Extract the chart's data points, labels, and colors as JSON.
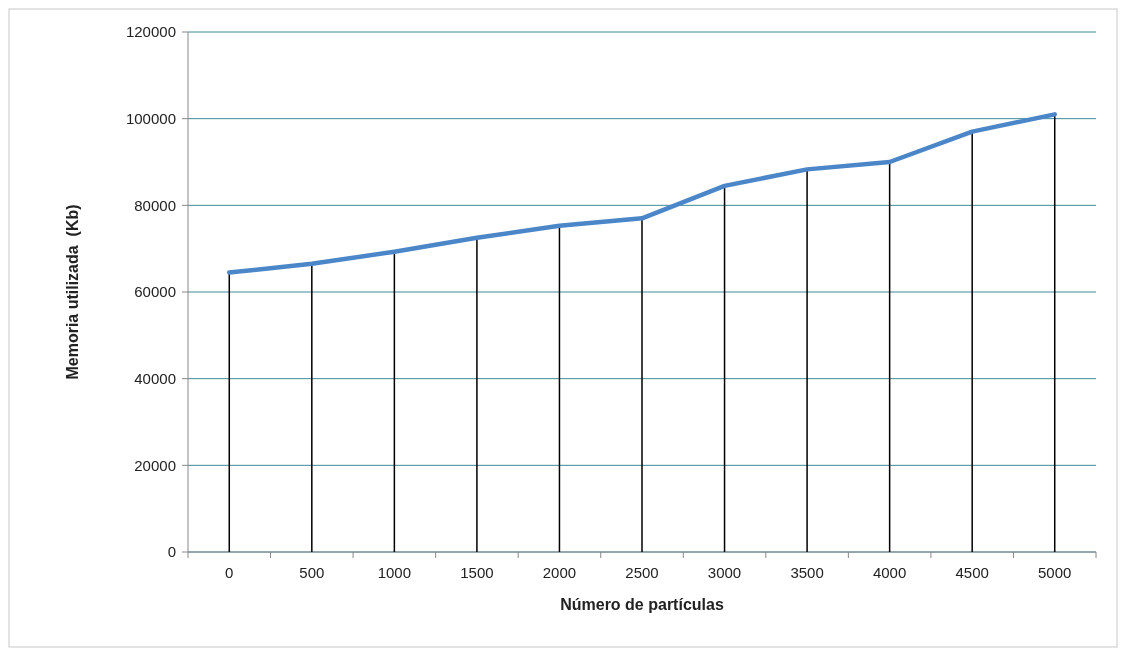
{
  "chart_data": {
    "type": "line",
    "xlabel": "Número de partículas",
    "ylabel": "Memoria utilizada  (Kb)",
    "categories": [
      "0",
      "500",
      "1000",
      "1500",
      "2000",
      "2500",
      "3000",
      "3500",
      "4000",
      "4500",
      "5000"
    ],
    "series": [
      {
        "type": "bar",
        "color": "#000000",
        "values": [
          64500,
          66500,
          69300,
          72500,
          75300,
          77000,
          84500,
          88300,
          90000,
          97000,
          101000
        ]
      },
      {
        "color": "#4a86c8",
        "values": [
          64500,
          66500,
          69300,
          72500,
          75300,
          77000,
          84500,
          88300,
          90000,
          97000,
          101000
        ]
      }
    ],
    "ylim": [
      0,
      120000
    ],
    "yticks": [
      0,
      20000,
      40000,
      60000,
      80000,
      100000,
      120000
    ],
    "grid": "y",
    "legend": false,
    "marker": "none"
  }
}
